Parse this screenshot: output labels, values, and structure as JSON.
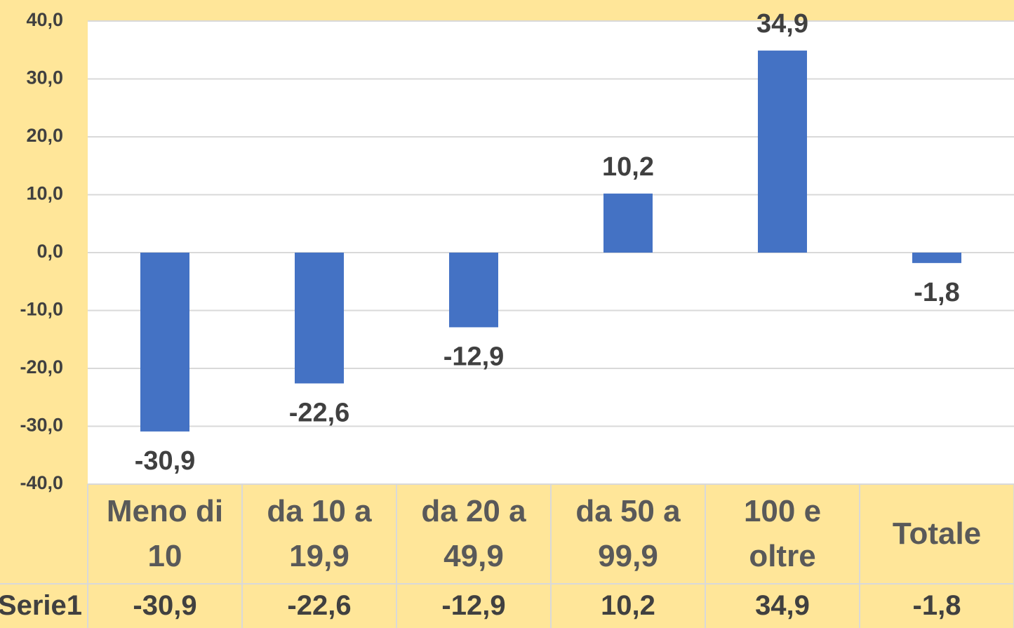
{
  "chart_data": {
    "type": "bar",
    "categories": [
      "Meno di 10",
      "da 10 a 19,9",
      "da 20 a 49,9",
      "da 50 a 99,9",
      "100 e oltre",
      "Totale"
    ],
    "series": [
      {
        "name": "Serie1",
        "color": "#4472c4",
        "values": [
          -30.9,
          -22.6,
          -12.9,
          10.2,
          34.9,
          -1.8
        ],
        "value_labels": [
          "-30,9",
          "-22,6",
          "-12,9",
          "10,2",
          "34,9",
          "-1,8"
        ]
      }
    ],
    "ylim": [
      -40,
      40
    ],
    "yticks": [
      {
        "value": -40,
        "label": "-40,0"
      },
      {
        "value": -30,
        "label": "-30,0"
      },
      {
        "value": -20,
        "label": "-20,0"
      },
      {
        "value": -10,
        "label": "-10,0"
      },
      {
        "value": 0,
        "label": "0,0"
      },
      {
        "value": 10,
        "label": "10,0"
      },
      {
        "value": 20,
        "label": "20,0"
      },
      {
        "value": 30,
        "label": "30,0"
      },
      {
        "value": 40,
        "label": "40,0"
      }
    ],
    "grid": true,
    "data_table": true
  }
}
